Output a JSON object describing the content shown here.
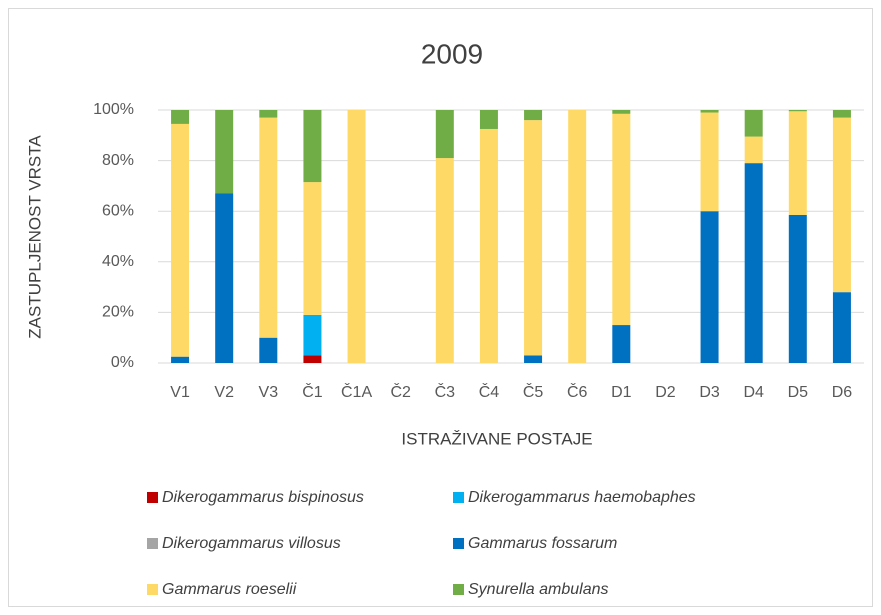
{
  "chart_data": {
    "type": "stacked-bar",
    "title": "2009",
    "x_label": "ISTRAŽIVANE POSTAJE",
    "y_label": "ZASTUPLJENOST VRSTA",
    "categories": [
      "V1",
      "V2",
      "V3",
      "Č1",
      "Č1A",
      "Č2",
      "Č3",
      "Č4",
      "Č5",
      "Č6",
      "D1",
      "D2",
      "D3",
      "D4",
      "D5",
      "D6"
    ],
    "series": [
      {
        "name": "Dikerogammarus bispinosus",
        "color": "#c00000",
        "values": [
          0,
          0,
          0,
          3,
          0,
          0,
          0,
          0,
          0,
          0,
          0,
          0,
          0,
          0,
          0,
          0
        ]
      },
      {
        "name": "Dikerogammarus haemobaphes",
        "color": "#00b0f0",
        "values": [
          0,
          0,
          0,
          16,
          0,
          0,
          0,
          0,
          0,
          0,
          0,
          0,
          0,
          0,
          0,
          0
        ]
      },
      {
        "name": "Dikerogammarus villosus",
        "color": "#a5a5a5",
        "values": [
          0,
          0,
          0,
          0,
          0,
          0,
          0,
          0,
          0,
          0,
          0,
          0,
          0,
          0,
          0,
          0
        ]
      },
      {
        "name": "Gammarus fossarum",
        "color": "#0070c0",
        "values": [
          2.5,
          67,
          10,
          0,
          0,
          0,
          0,
          0,
          3,
          0,
          15,
          0,
          60,
          79,
          58.5,
          28
        ]
      },
      {
        "name": "Gammarus roeselii",
        "color": "#ffd966",
        "values": [
          92,
          0,
          87,
          52.5,
          100,
          0,
          81,
          92.5,
          93,
          100,
          83.5,
          0,
          39,
          10.5,
          41,
          69
        ]
      },
      {
        "name": "Synurella ambulans",
        "color": "#70ad47",
        "values": [
          5.5,
          33,
          3,
          28.5,
          0,
          0,
          19,
          7.5,
          4,
          0,
          1.5,
          0,
          1,
          10.5,
          0.5,
          3
        ]
      }
    ],
    "ylim": [
      0,
      100
    ],
    "yticks": [
      {
        "value": 0,
        "label": "0%"
      },
      {
        "value": 20,
        "label": "20%"
      },
      {
        "value": 40,
        "label": "40%"
      },
      {
        "value": 60,
        "label": "60%"
      },
      {
        "value": 80,
        "label": "80%"
      },
      {
        "value": 100,
        "label": "100%"
      }
    ],
    "grid": true
  }
}
